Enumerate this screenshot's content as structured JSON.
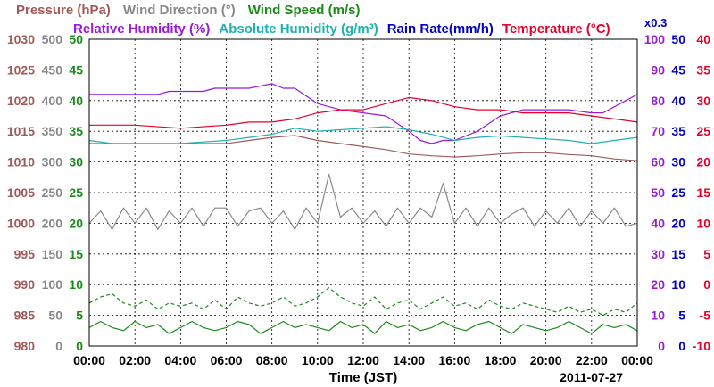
{
  "chart_data": {
    "type": "line",
    "date_label": "2011-07-27",
    "xlabel": "Time (JST)",
    "x_ticks": [
      "00:00",
      "02:00",
      "04:00",
      "06:00",
      "08:00",
      "10:00",
      "12:00",
      "14:00",
      "16:00",
      "18:00",
      "20:00",
      "22:00",
      "00:00"
    ],
    "legend_row1": [
      {
        "name": "Pressure (hPa)",
        "color": "#a05a5a"
      },
      {
        "name": "Wind Direction (°)",
        "color": "#888888"
      },
      {
        "name": "Wind Speed (m/s)",
        "color": "#1a8a1a"
      }
    ],
    "legend_row2": [
      {
        "name": "Relative Humidity (%)",
        "color": "#9a1ad8"
      },
      {
        "name": "Absolute Humidity (g/m³)",
        "color": "#20b0b0"
      },
      {
        "name": "Rain Rate(mm/h)",
        "color": "#0000cc"
      },
      {
        "name": "Temperature (°C)",
        "color": "#e8002a"
      }
    ],
    "rain_scale_note": "x0.3",
    "axes": {
      "pressure": {
        "color": "#a05a5a",
        "ticks": [
          "1030",
          "1025",
          "1020",
          "1015",
          "1010",
          "1005",
          "1000",
          "995",
          "990",
          "985",
          "980"
        ],
        "range": [
          980,
          1030
        ]
      },
      "wind_direction": {
        "color": "#888888",
        "ticks": [
          "500",
          "450",
          "400",
          "350",
          "300",
          "250",
          "200",
          "150",
          "100",
          "50",
          "0"
        ],
        "range": [
          0,
          500
        ]
      },
      "wind_speed": {
        "color": "#1a8a1a",
        "ticks": [
          "50",
          "45",
          "40",
          "35",
          "30",
          "25",
          "20",
          "15",
          "10",
          "5",
          "0"
        ],
        "range": [
          0,
          50
        ]
      },
      "relative_humidity": {
        "color": "#9a1ad8",
        "ticks": [
          "100",
          "90",
          "80",
          "70",
          "60",
          "50",
          "40",
          "30",
          "20",
          "10",
          "0"
        ],
        "range": [
          0,
          100
        ]
      },
      "rain_rate": {
        "color": "#0000cc",
        "ticks": [
          "50",
          "45",
          "40",
          "35",
          "30",
          "25",
          "20",
          "15",
          "10",
          "5",
          "0"
        ],
        "range": [
          0,
          50
        ]
      },
      "temperature": {
        "color": "#e8002a",
        "ticks": [
          "40",
          "35",
          "30",
          "25",
          "20",
          "15",
          "10",
          "5",
          "0",
          "-5",
          "-10"
        ],
        "range": [
          -10,
          40
        ]
      }
    },
    "x_range_hours": [
      0,
      24
    ],
    "series": [
      {
        "name": "Pressure (hPa)",
        "key": "pressure",
        "color": "#a05a5a",
        "x": [
          0,
          2,
          4,
          6,
          7,
          8,
          9,
          10,
          11,
          12,
          13,
          14,
          15,
          16,
          17,
          18,
          19,
          20,
          21,
          22,
          23,
          24
        ],
        "y": [
          1013,
          1013,
          1013,
          1013,
          1013.5,
          1014,
          1014.3,
          1013.5,
          1013,
          1012.5,
          1012,
          1011.3,
          1011,
          1010.8,
          1011,
          1011.3,
          1011.5,
          1011.5,
          1011.2,
          1011,
          1010.5,
          1010.2
        ]
      },
      {
        "name": "Relative Humidity (%)",
        "key": "relative_humidity",
        "color": "#9a1ad8",
        "x": [
          0,
          1,
          2,
          3,
          3.5,
          4,
          5,
          5.5,
          6,
          7,
          8,
          8.5,
          9,
          10,
          11,
          12,
          13,
          14,
          14.5,
          15,
          15.5,
          16,
          17,
          18,
          19,
          20,
          21,
          22,
          22.5,
          23,
          23.5,
          24
        ],
        "y": [
          82,
          82,
          82,
          82,
          83,
          83,
          83,
          84,
          84,
          84,
          85.5,
          84,
          84,
          79,
          77,
          76,
          75,
          70,
          67,
          66,
          67,
          67,
          70,
          75,
          77,
          77,
          77,
          76,
          76,
          78,
          80,
          82
        ]
      },
      {
        "name": "Absolute Humidity (g/m³)",
        "key": "absolute_humidity",
        "color": "#20b0b0",
        "x": [
          0,
          1,
          2,
          3,
          4,
          5,
          6,
          7,
          8,
          9,
          10,
          11,
          12,
          13,
          14,
          15,
          16,
          17,
          18,
          19,
          20,
          21,
          22,
          23,
          24
        ],
        "y": [
          67,
          66,
          66,
          66,
          66,
          66.5,
          67,
          68,
          69,
          71,
          70,
          70.5,
          71,
          71.5,
          70.5,
          69,
          67,
          68,
          68.5,
          68,
          67.5,
          67,
          66,
          67,
          68
        ]
      },
      {
        "name": "Temperature (°C)",
        "key": "temperature",
        "color": "#e8002a",
        "x": [
          0,
          2,
          4,
          6,
          7,
          8,
          9,
          10,
          11,
          12,
          13,
          14,
          15,
          16,
          17,
          18,
          19,
          20,
          21,
          22,
          23,
          24
        ],
        "y": [
          26,
          26,
          25.5,
          26,
          26.5,
          26.5,
          27,
          28,
          28.5,
          28.5,
          29.5,
          30.5,
          30,
          29,
          28.5,
          28.5,
          28,
          28,
          28,
          27.5,
          27,
          26.5
        ]
      },
      {
        "name": "Wind Direction (°)",
        "key": "wind_direction",
        "color": "#888888",
        "x": [
          0,
          0.5,
          1,
          1.5,
          2,
          2.5,
          3,
          3.5,
          4,
          4.5,
          5,
          5.5,
          6,
          6.5,
          7,
          7.5,
          8,
          8.5,
          9,
          9.5,
          10,
          10.5,
          11,
          11.5,
          12,
          12.5,
          13,
          13.5,
          14,
          14.5,
          15,
          15.5,
          16,
          16.5,
          17,
          17.5,
          18,
          18.5,
          19,
          19.5,
          20,
          20.5,
          21,
          21.5,
          22,
          22.5,
          23,
          23.5,
          24
        ],
        "y": [
          200,
          220,
          190,
          225,
          200,
          225,
          190,
          220,
          200,
          225,
          195,
          225,
          225,
          195,
          220,
          225,
          200,
          220,
          190,
          225,
          200,
          280,
          210,
          225,
          200,
          220,
          195,
          225,
          200,
          225,
          210,
          265,
          200,
          225,
          195,
          225,
          200,
          215,
          225,
          195,
          220,
          200,
          225,
          195,
          220,
          200,
          225,
          195,
          200
        ]
      },
      {
        "name": "Wind Speed (m/s)",
        "key": "wind_speed",
        "color": "#1a8a1a",
        "x": [
          0,
          0.5,
          1,
          1.5,
          2,
          2.5,
          3,
          3.5,
          4,
          4.5,
          5,
          5.5,
          6,
          6.5,
          7,
          7.5,
          8,
          8.5,
          9,
          9.5,
          10,
          10.5,
          11,
          11.5,
          12,
          12.5,
          13,
          13.5,
          14,
          14.5,
          15,
          15.5,
          16,
          16.5,
          17,
          17.5,
          18,
          18.5,
          19,
          19.5,
          20,
          20.5,
          21,
          21.5,
          22,
          22.5,
          23,
          23.5,
          24
        ],
        "y": [
          3,
          4,
          3,
          2.5,
          4,
          3,
          3.5,
          2,
          3,
          4,
          3,
          2.5,
          3,
          4,
          3.5,
          2,
          3,
          4,
          3,
          3.5,
          3,
          2.5,
          4,
          3,
          3.5,
          2,
          4,
          3,
          3.5,
          2.5,
          3,
          4,
          3,
          2.5,
          3.5,
          4,
          3,
          2,
          3.5,
          3,
          2.5,
          3,
          4,
          3,
          2,
          3.5,
          3,
          3.5,
          2.5
        ]
      },
      {
        "name": "Wind Speed gust (m/s)",
        "key": "wind_speed",
        "color": "#1a8a1a",
        "dashed": true,
        "x": [
          0,
          0.5,
          1,
          1.5,
          2,
          2.5,
          3,
          3.5,
          4,
          4.5,
          5,
          5.5,
          6,
          6.5,
          7,
          7.5,
          8,
          8.5,
          9,
          9.5,
          10,
          10.5,
          11,
          11.5,
          12,
          12.5,
          13,
          13.5,
          14,
          14.5,
          15,
          15.5,
          16,
          16.5,
          17,
          17.5,
          18,
          18.5,
          19,
          19.5,
          20,
          20.5,
          21,
          21.5,
          22,
          22.5,
          23,
          23.5,
          24
        ],
        "y": [
          7,
          8,
          8.5,
          7,
          6.5,
          7.5,
          6,
          7,
          6.5,
          7,
          6,
          7.5,
          6,
          8,
          7,
          6.5,
          7,
          8,
          6.5,
          7,
          8,
          9.5,
          8,
          7,
          6.5,
          8,
          6,
          7,
          7.5,
          6,
          7,
          8,
          6.5,
          7,
          6,
          7.5,
          6.5,
          6,
          7,
          6.5,
          6,
          5.5,
          6.5,
          5.5,
          6,
          5,
          6,
          5.5,
          7
        ]
      }
    ]
  }
}
